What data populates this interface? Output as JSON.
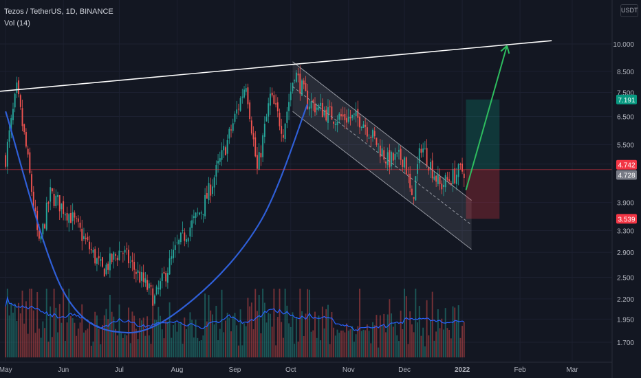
{
  "header": {
    "symbol_line": "Tezos / TetherUS, 1D, BINANCE",
    "volume_line": "Vol (14)",
    "currency_button": "USDT"
  },
  "colors": {
    "background": "#131722",
    "up": "#26a69a",
    "down": "#ef5350",
    "volume_ma": "#2962ff",
    "cup_curve": "#2f5fd8",
    "resistance_line": "#ffffff",
    "target_arrow": "#2ebd5f"
  },
  "chart_data": {
    "type": "candlestick",
    "scale": "log",
    "x_ticks": [
      "May",
      "Jun",
      "Jul",
      "Aug",
      "Sep",
      "Oct",
      "Nov",
      "Dec",
      "2022",
      "Feb",
      "Mar"
    ],
    "y_ticks": [
      "10.000",
      "8.500",
      "7.500",
      "6.500",
      "5.500",
      "4.900",
      "3.900",
      "3.300",
      "2.900",
      "2.500",
      "2.200",
      "1.950",
      "1.700"
    ],
    "price_badges": [
      {
        "label": "7.191",
        "value": 7.191,
        "role": "take-profit",
        "color": "#089981"
      },
      {
        "label": "4.742",
        "value": 4.742,
        "role": "entry",
        "color": "#f23645"
      },
      {
        "label": "4.728",
        "value": 4.728,
        "role": "last",
        "color": "#787b86"
      },
      {
        "label": "3.539",
        "value": 3.539,
        "role": "stop-loss",
        "color": "#f23645"
      }
    ],
    "anchors": [
      {
        "date": "May 01",
        "close": 5.1
      },
      {
        "date": "May 07",
        "close": 7.6
      },
      {
        "date": "May 12",
        "close": 5.4
      },
      {
        "date": "May 19",
        "close": 3.0
      },
      {
        "date": "May 25",
        "close": 4.1
      },
      {
        "date": "Jun 05",
        "close": 3.6
      },
      {
        "date": "Jun 22",
        "close": 2.6
      },
      {
        "date": "Jul 02",
        "close": 2.95
      },
      {
        "date": "Jul 20",
        "close": 2.2
      },
      {
        "date": "Aug 01",
        "close": 3.0
      },
      {
        "date": "Aug 15",
        "close": 3.8
      },
      {
        "date": "Aug 28",
        "close": 5.6
      },
      {
        "date": "Sep 07",
        "close": 8.0
      },
      {
        "date": "Sep 13",
        "close": 4.7
      },
      {
        "date": "Sep 20",
        "close": 7.3
      },
      {
        "date": "Sep 27",
        "close": 6.0
      },
      {
        "date": "Oct 03",
        "close": 8.5
      },
      {
        "date": "Oct 10",
        "close": 7.1
      },
      {
        "date": "Oct 24",
        "close": 6.5
      },
      {
        "date": "Nov 08",
        "close": 6.4
      },
      {
        "date": "Nov 22",
        "close": 5.0
      },
      {
        "date": "Dec 01",
        "close": 5.1
      },
      {
        "date": "Dec 05",
        "close": 3.9
      },
      {
        "date": "Dec 10",
        "close": 5.5
      },
      {
        "date": "Dec 20",
        "close": 4.3
      },
      {
        "date": "Dec 31",
        "close": 4.7
      },
      {
        "date": "Jan 03",
        "close": 4.74
      }
    ],
    "annotations": {
      "resistance": {
        "from": {
          "date": "Apr 28",
          "price": 7.55
        },
        "to": {
          "date": "Feb 18",
          "price": 10.2
        }
      },
      "channel": {
        "upper": {
          "from": {
            "date": "Oct 02",
            "price": 9.0
          },
          "to": {
            "date": "Jan 06",
            "price": 3.95
          }
        },
        "lower": {
          "from": {
            "date": "Oct 02",
            "price": 6.7
          },
          "to": {
            "date": "Jan 06",
            "price": 2.95
          }
        }
      },
      "cup_curve": [
        {
          "date": "May 01",
          "price": 6.7
        },
        {
          "date": "Jun 01",
          "price": 2.3
        },
        {
          "date": "Jul 05",
          "price": 1.8
        },
        {
          "date": "Aug 10",
          "price": 2.2
        },
        {
          "date": "Sep 15",
          "price": 3.5
        },
        {
          "date": "Oct 10",
          "price": 7.0
        }
      ],
      "position": {
        "entry": 4.742,
        "target": 7.191,
        "stop": 3.539,
        "from": "Jan 03",
        "to": "Jan 21"
      },
      "arrow": {
        "from": {
          "date": "Jan 03",
          "price": 4.2
        },
        "to": {
          "date": "Jan 25",
          "price": 9.9
        }
      }
    }
  }
}
